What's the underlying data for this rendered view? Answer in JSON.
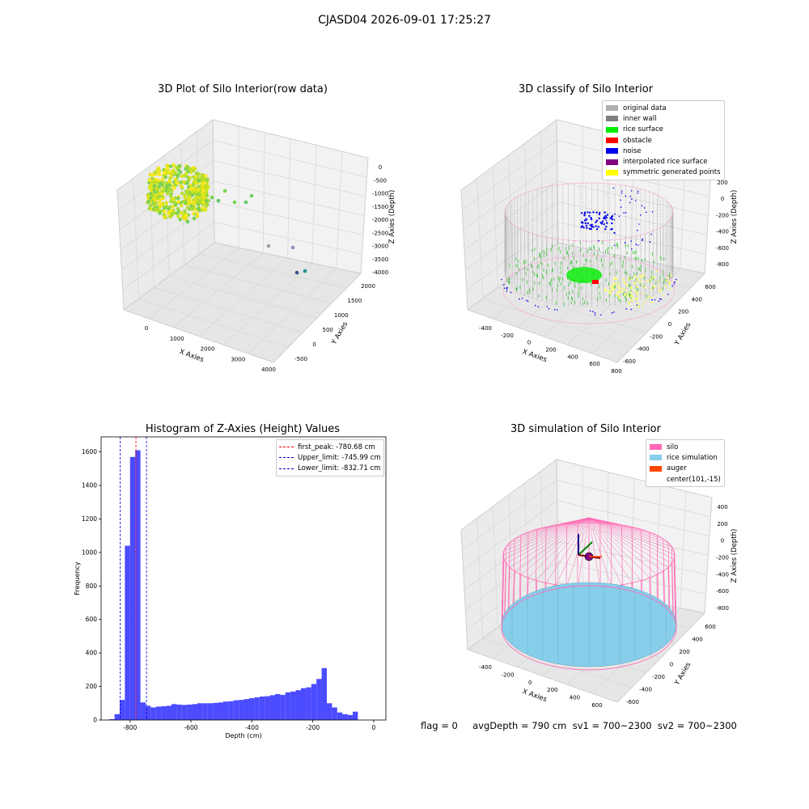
{
  "suptitle": "CJASD04 2026-09-01 17:25:27",
  "colors": {
    "bar": "#4b4bff",
    "peak_line": "#ff0000",
    "limit_line": "#0000cc",
    "silo": "#ff69b4",
    "rice": "#87ceeb",
    "auger": "#ff4500",
    "pane": "#f2f2f2",
    "grid": "#d8d8d8"
  },
  "chart_data": [
    {
      "type": "scatter",
      "title": "3D Plot of Silo Interior(row data)",
      "xlabel": "X Axies",
      "ylabel": "Y Axies",
      "zlabel": "Z Axies (Depth)",
      "xticks": [
        "0",
        "1000",
        "2000",
        "3000",
        "4000"
      ],
      "yticks": [
        "-500",
        "0",
        "500",
        "1000",
        "1500",
        "2000"
      ],
      "zticks": [
        "0",
        "-500",
        "-1000",
        "-1500",
        "-2000",
        "-2500",
        "-3000",
        "-3500",
        "-4000"
      ],
      "colormap": "viridis",
      "points_note": "dense ring of points near x≈0–500 with several scattered outliers"
    },
    {
      "type": "scatter",
      "title": "3D classify of Silo Interior",
      "xlabel": "X Axies",
      "ylabel": "Y Axies",
      "zlabel": "Z Axies (Depth)",
      "xticks": [
        "-400",
        "-200",
        "0",
        "200",
        "400",
        "600",
        "800"
      ],
      "yticks": [
        "-600",
        "-400",
        "-200",
        "0",
        "200",
        "400",
        "600"
      ],
      "zticks": [
        "200",
        "0",
        "-200",
        "-400",
        "-600",
        "-800"
      ],
      "legend": [
        {
          "label": "original data",
          "color": "#b0b0b0"
        },
        {
          "label": "inner wall",
          "color": "#808080"
        },
        {
          "label": "rice surface",
          "color": "#00ee00"
        },
        {
          "label": "obstacle",
          "color": "#ff0000"
        },
        {
          "label": "noise",
          "color": "#0000ee"
        },
        {
          "label": "interpolated rice surface",
          "color": "#800080"
        },
        {
          "label": "symmetric generated points",
          "color": "#ffff00"
        }
      ]
    },
    {
      "type": "bar",
      "title": "Histogram of Z-Axies (Height) Values",
      "xlabel": "Depth (cm)",
      "ylabel": "Frequency",
      "xlim": [
        -895,
        40
      ],
      "ylim": [
        0,
        1690
      ],
      "xticks": [
        -800,
        -600,
        -400,
        -200,
        0
      ],
      "yticks": [
        0,
        200,
        400,
        600,
        800,
        1000,
        1200,
        1400,
        1600
      ],
      "bin_width": 17,
      "bin_start": -868,
      "values": [
        5,
        35,
        120,
        1040,
        1570,
        1610,
        105,
        85,
        75,
        80,
        82,
        85,
        95,
        92,
        90,
        92,
        95,
        100,
        100,
        100,
        102,
        105,
        110,
        112,
        118,
        120,
        125,
        130,
        135,
        140,
        142,
        148,
        155,
        150,
        165,
        170,
        178,
        190,
        195,
        215,
        245,
        310,
        100,
        75,
        45,
        35,
        30,
        50
      ],
      "vlines": [
        {
          "label": "first_peak: -780.68 cm",
          "x": -780.68,
          "color": "#ff0000"
        },
        {
          "label": "Upper_limit: -745.99 cm",
          "x": -745.99,
          "color": "#0000cc"
        },
        {
          "label": "Lower_limit: -832.71 cm",
          "x": -832.71,
          "color": "#0000cc"
        }
      ]
    },
    {
      "type": "scatter",
      "title": "3D simulation of Silo Interior",
      "xlabel": "X Axies",
      "ylabel": "Y Axies",
      "zlabel": "Z Axies (Depth)",
      "xticks": [
        "-400",
        "-200",
        "0",
        "200",
        "400",
        "600"
      ],
      "yticks": [
        "-600",
        "-400",
        "-200",
        "0",
        "200",
        "400",
        "600"
      ],
      "zticks": [
        "400",
        "200",
        "0",
        "-200",
        "-400",
        "-600",
        "-800"
      ],
      "legend": [
        {
          "label": "silo",
          "color": "#ff69b4"
        },
        {
          "label": "rice simulation",
          "color": "#87ceeb"
        },
        {
          "label": "auger",
          "color": "#ff4500"
        },
        {
          "label": "center(101,-15)",
          "color": ""
        }
      ]
    }
  ],
  "footer": "flag = 0     avgDepth = 790 cm  sv1 = 700~2300  sv2 = 700~2300"
}
